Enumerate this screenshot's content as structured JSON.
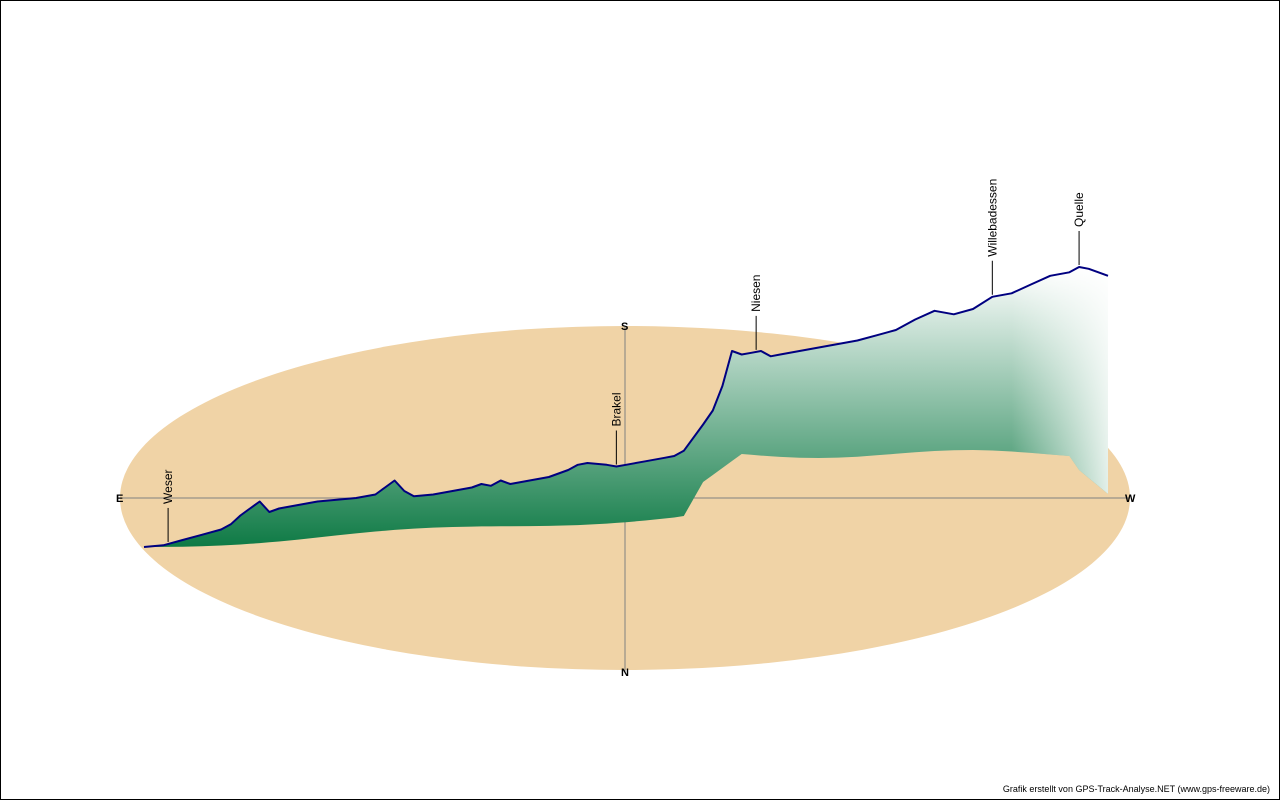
{
  "credit": "Grafik erstellt von GPS-Track-Analyse.NET (www.gps-freeware.de)",
  "colors": {
    "ellipse": "#F0D3A6",
    "profile_line": "#000080",
    "fill_dark": "#0E7A45",
    "fill_light": "#FFFFFF",
    "axis": "#808080"
  },
  "chart_data": {
    "type": "area",
    "title": "",
    "compass": {
      "east": "E",
      "west": "W",
      "south": "S",
      "north": "N"
    },
    "waypoints": [
      {
        "name": "Weser",
        "distance_pct": 2.5
      },
      {
        "name": "Brakel",
        "distance_pct": 49.0
      },
      {
        "name": "Niesen",
        "distance_pct": 63.5
      },
      {
        "name": "Willebadessen",
        "distance_pct": 88.0
      },
      {
        "name": "Quelle",
        "distance_pct": 97.0
      }
    ],
    "elevation_profile_relative": [
      [
        0,
        0
      ],
      [
        2,
        1
      ],
      [
        4,
        4
      ],
      [
        6,
        7
      ],
      [
        8,
        10
      ],
      [
        9,
        13
      ],
      [
        10,
        18
      ],
      [
        11,
        22
      ],
      [
        12,
        26
      ],
      [
        13,
        20
      ],
      [
        14,
        22
      ],
      [
        16,
        24
      ],
      [
        18,
        26
      ],
      [
        20,
        27
      ],
      [
        22,
        28
      ],
      [
        24,
        30
      ],
      [
        25,
        34
      ],
      [
        26,
        38
      ],
      [
        27,
        32
      ],
      [
        28,
        29
      ],
      [
        30,
        30
      ],
      [
        32,
        32
      ],
      [
        34,
        34
      ],
      [
        35,
        36
      ],
      [
        36,
        35
      ],
      [
        37,
        38
      ],
      [
        38,
        36
      ],
      [
        40,
        38
      ],
      [
        42,
        40
      ],
      [
        44,
        44
      ],
      [
        45,
        47
      ],
      [
        46,
        48
      ],
      [
        48,
        47
      ],
      [
        49,
        46
      ],
      [
        50,
        47
      ],
      [
        52,
        49
      ],
      [
        54,
        51
      ],
      [
        55,
        52
      ],
      [
        56,
        55
      ],
      [
        58,
        70
      ],
      [
        59,
        78
      ],
      [
        60,
        92
      ],
      [
        61,
        112
      ],
      [
        62,
        110
      ],
      [
        63,
        111
      ],
      [
        64,
        112
      ],
      [
        65,
        109
      ],
      [
        66,
        110
      ],
      [
        68,
        112
      ],
      [
        70,
        114
      ],
      [
        72,
        116
      ],
      [
        74,
        118
      ],
      [
        76,
        121
      ],
      [
        78,
        124
      ],
      [
        80,
        130
      ],
      [
        82,
        135
      ],
      [
        84,
        133
      ],
      [
        86,
        136
      ],
      [
        88,
        143
      ],
      [
        90,
        145
      ],
      [
        92,
        150
      ],
      [
        94,
        155
      ],
      [
        96,
        157
      ],
      [
        97,
        160
      ],
      [
        98,
        159
      ],
      [
        99,
        157
      ],
      [
        100,
        155
      ]
    ]
  }
}
